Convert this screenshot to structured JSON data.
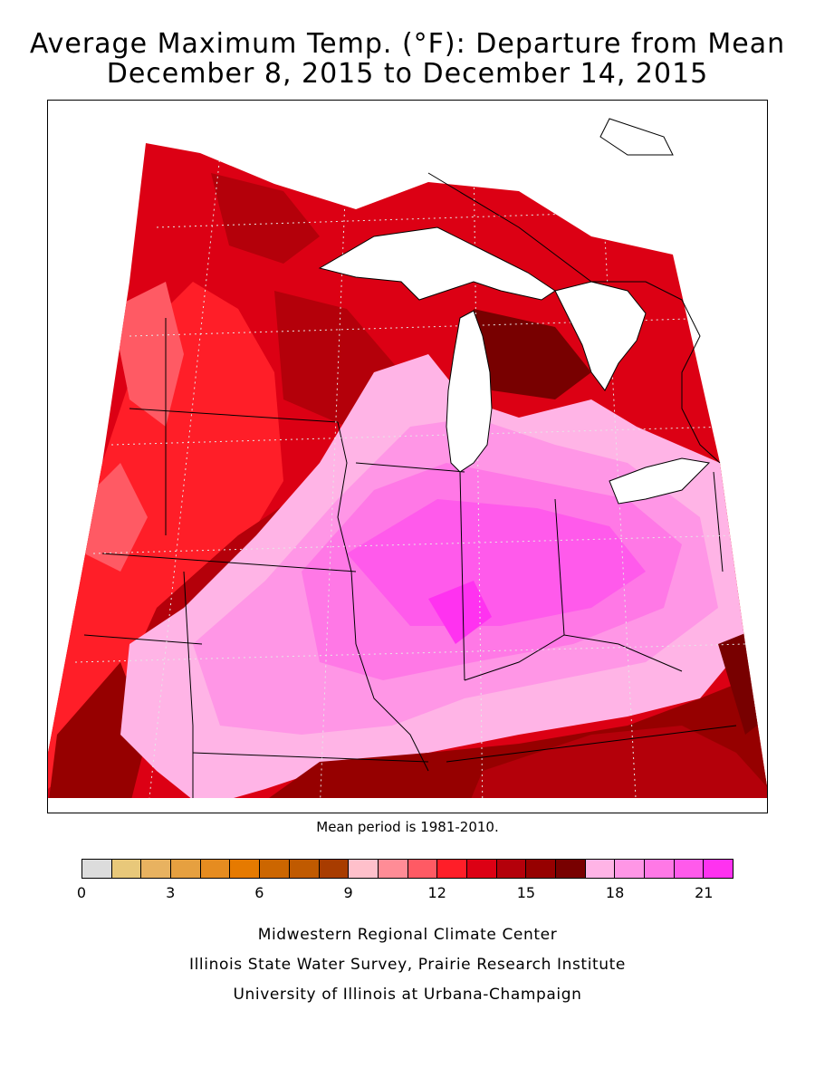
{
  "title": {
    "line1": "Average Maximum Temp. (°F): Departure from Mean",
    "line2": "December 8, 2015 to December 14, 2015"
  },
  "mean_note": "Mean period is 1981-2010.",
  "legend": {
    "colors": [
      "#dcdcdc",
      "#e8c87a",
      "#e8b260",
      "#e6a040",
      "#e68c20",
      "#e67a00",
      "#cc6600",
      "#c05a00",
      "#a83c00",
      "#ffc0cb",
      "#ff8c96",
      "#ff5a64",
      "#ff1e28",
      "#dc0014",
      "#b4000a",
      "#960000",
      "#780000",
      "#ffb4e6",
      "#ff96e6",
      "#ff78e6",
      "#ff5aeb",
      "#ff32f0"
    ],
    "ticks": [
      "0",
      "3",
      "6",
      "9",
      "12",
      "15",
      "18",
      "21"
    ]
  },
  "credits": {
    "line1": "Midwestern Regional Climate Center",
    "line2": "Illinois State Water Survey, Prairie Research Institute",
    "line3": "University of Illinois at Urbana-Champaign"
  }
}
